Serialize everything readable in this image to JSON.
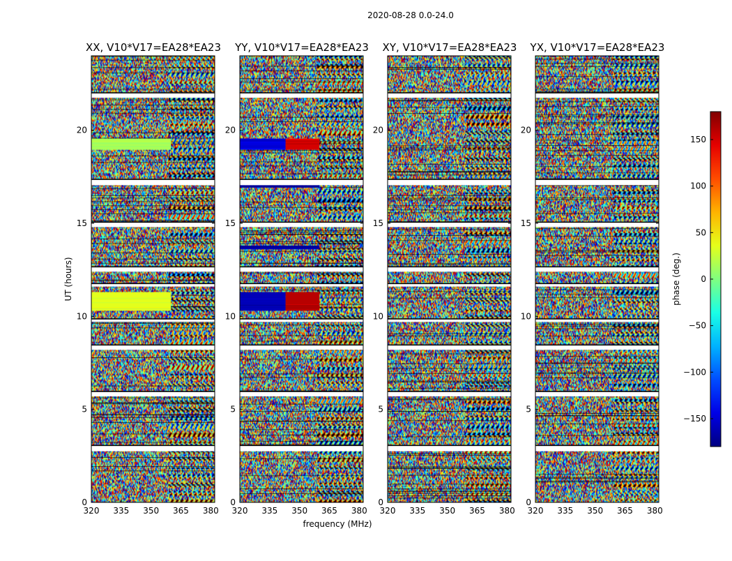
{
  "suptitle": "2020-08-28 0.0-24.0",
  "chart_data": {
    "type": "heatmap",
    "xlabel": "frequency (MHz)",
    "ylabel": "UT (hours)",
    "xlim": [
      320,
      382
    ],
    "ylim": [
      0,
      24
    ],
    "xticks": [
      "320",
      "335",
      "350",
      "365",
      "380"
    ],
    "yticks": [
      "0",
      "5",
      "10",
      "15",
      "20"
    ],
    "colorbar": {
      "label": "phase (deg.)",
      "range": [
        -180,
        180
      ],
      "ticks": [
        "150",
        "100",
        "50",
        "0",
        "−50",
        "−100",
        "−150"
      ],
      "colormap": "jet"
    },
    "panels": [
      {
        "title": "XX, V10*V17=EA28*EA23"
      },
      {
        "title": "YY, V10*V17=EA28*EA23"
      },
      {
        "title": "XY, V10*V17=EA28*EA23"
      },
      {
        "title": "YX, V10*V17=EA28*EA23"
      }
    ],
    "flagged_gaps_hours": [
      [
        2.75,
        3.05
      ],
      [
        5.7,
        5.95
      ],
      [
        8.2,
        8.45
      ],
      [
        9.7,
        9.85
      ],
      [
        11.6,
        11.75
      ],
      [
        12.4,
        12.65
      ],
      [
        14.8,
        15.05
      ],
      [
        17.05,
        17.35
      ],
      [
        21.75,
        22.0
      ]
    ],
    "coherent_bands": [
      {
        "panel": 0,
        "ut": [
          18.95,
          19.55
        ],
        "freq": [
          320,
          360
        ],
        "phase": 15
      },
      {
        "panel": 0,
        "ut": [
          10.3,
          11.3
        ],
        "freq": [
          320,
          360
        ],
        "phase": 35
      },
      {
        "panel": 1,
        "ut": [
          18.95,
          19.55
        ],
        "freq": [
          320,
          343
        ],
        "phase": -150
      },
      {
        "panel": 1,
        "ut": [
          18.95,
          19.55
        ],
        "freq": [
          343,
          360
        ],
        "phase": 150
      },
      {
        "panel": 1,
        "ut": [
          10.3,
          11.3
        ],
        "freq": [
          320,
          343
        ],
        "phase": -160
      },
      {
        "panel": 1,
        "ut": [
          10.3,
          11.3
        ],
        "freq": [
          343,
          360
        ],
        "phase": 160
      },
      {
        "panel": 1,
        "ut": [
          13.6,
          13.8
        ],
        "freq": [
          320,
          360
        ],
        "phase": -170
      },
      {
        "panel": 1,
        "ut": [
          16.95,
          17.05
        ],
        "freq": [
          320,
          360
        ],
        "phase": -165
      }
    ]
  }
}
